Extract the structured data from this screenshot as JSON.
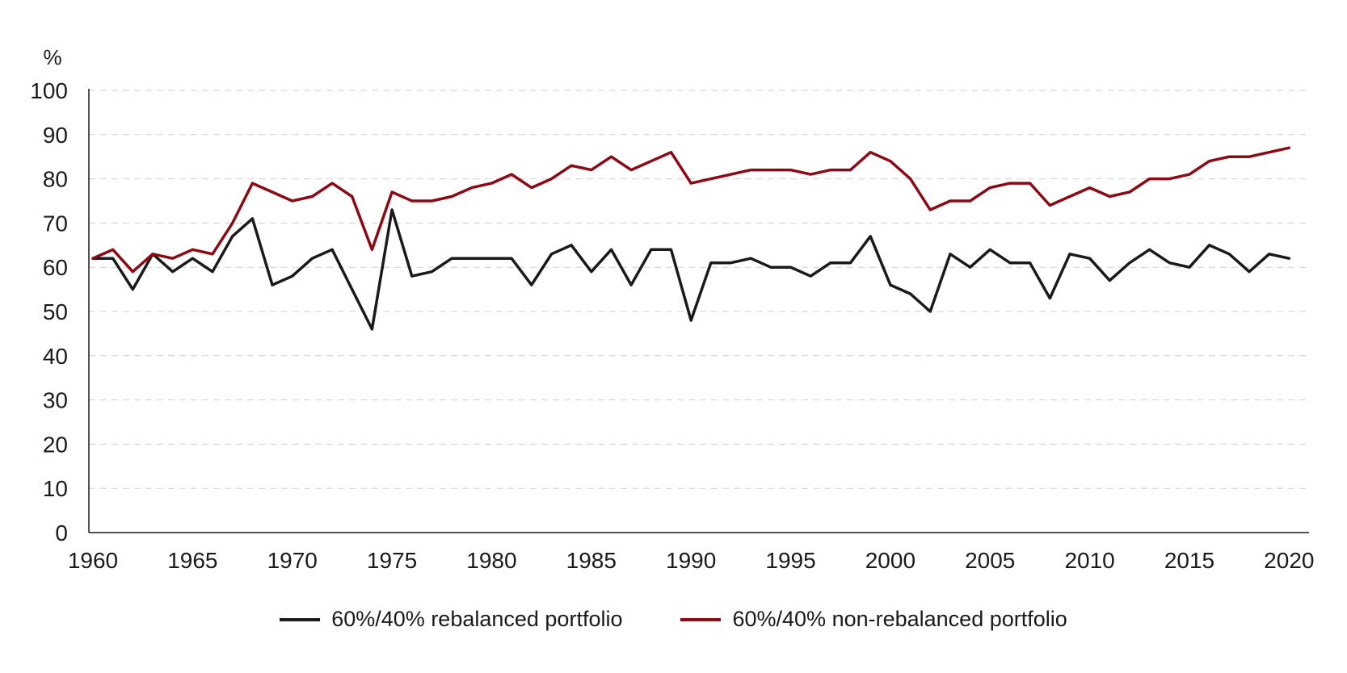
{
  "chart_data": {
    "type": "line",
    "title": "",
    "xlabel": "",
    "ylabel": "%",
    "ylim": [
      0,
      100
    ],
    "xlim": [
      1960,
      2021
    ],
    "yticks": [
      "0",
      "10",
      "20",
      "30",
      "40",
      "50",
      "60",
      "70",
      "80",
      "90",
      "100"
    ],
    "xticks": [
      "1960",
      "1965",
      "1970",
      "1975",
      "1980",
      "1985",
      "1990",
      "1995",
      "2000",
      "2005",
      "2010",
      "2015",
      "2020"
    ],
    "grid": "horizontal dashed",
    "legend_position": "bottom",
    "x": [
      1960,
      1961,
      1962,
      1963,
      1964,
      1965,
      1966,
      1967,
      1968,
      1969,
      1970,
      1971,
      1972,
      1973,
      1974,
      1975,
      1976,
      1977,
      1978,
      1979,
      1980,
      1981,
      1982,
      1983,
      1984,
      1985,
      1986,
      1987,
      1988,
      1989,
      1990,
      1991,
      1992,
      1993,
      1994,
      1995,
      1996,
      1997,
      1998,
      1999,
      2000,
      2001,
      2002,
      2003,
      2004,
      2005,
      2006,
      2007,
      2008,
      2009,
      2010,
      2011,
      2012,
      2013,
      2014,
      2015,
      2016,
      2017,
      2018,
      2019,
      2020,
      2021
    ],
    "series": [
      {
        "name": "60%/40% rebalanced portfolio",
        "color": "#1a1a1a",
        "values": [
          62,
          62,
          55,
          63,
          59,
          62,
          59,
          67,
          71,
          56,
          58,
          62,
          64,
          55,
          46,
          73,
          58,
          59,
          62,
          62,
          62,
          62,
          56,
          63,
          65,
          59,
          64,
          56,
          64,
          64,
          48,
          61,
          61,
          62,
          60,
          60,
          58,
          61,
          61,
          67,
          56,
          54,
          50,
          63,
          60,
          64,
          61,
          61,
          53,
          63,
          62,
          57,
          61,
          64,
          61,
          60,
          65,
          63,
          59,
          63,
          62,
          null
        ]
      },
      {
        "name": "60%/40% non-rebalanced portfolio",
        "color": "#8b0a14",
        "values": [
          62,
          64,
          59,
          63,
          62,
          64,
          63,
          70,
          79,
          77,
          75,
          76,
          79,
          76,
          64,
          77,
          75,
          75,
          76,
          78,
          79,
          81,
          78,
          80,
          83,
          82,
          85,
          82,
          84,
          86,
          79,
          80,
          81,
          82,
          82,
          82,
          81,
          82,
          82,
          86,
          84,
          80,
          73,
          75,
          75,
          78,
          79,
          79,
          74,
          76,
          78,
          76,
          77,
          80,
          80,
          81,
          84,
          85,
          85,
          86,
          87,
          null
        ]
      }
    ]
  }
}
